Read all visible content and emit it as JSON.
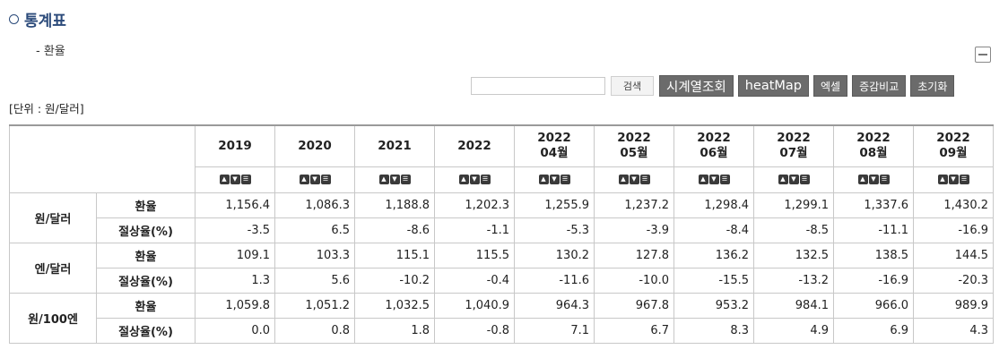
{
  "section": {
    "title": "통계표",
    "subtitle": "- 환율"
  },
  "toolbar": {
    "search_value": "",
    "search_button": "검색",
    "timeseries_button": "시계열조회",
    "heatmap_button": "heatMap",
    "excel_button": "엑셀",
    "compare_button": "증감비교",
    "reset_button": "초기화"
  },
  "unit_label": "[단위 : 원/달러]",
  "table": {
    "columns": [
      {
        "line1": "2019",
        "line2": ""
      },
      {
        "line1": "2020",
        "line2": ""
      },
      {
        "line1": "2021",
        "line2": ""
      },
      {
        "line1": "2022",
        "line2": ""
      },
      {
        "line1": "2022",
        "line2": "04월"
      },
      {
        "line1": "2022",
        "line2": "05월"
      },
      {
        "line1": "2022",
        "line2": "06월"
      },
      {
        "line1": "2022",
        "line2": "07월"
      },
      {
        "line1": "2022",
        "line2": "08월"
      },
      {
        "line1": "2022",
        "line2": "09월"
      }
    ],
    "groups": [
      {
        "name": "원/달러",
        "rows": [
          {
            "label": "환율",
            "values": [
              "1,156.4",
              "1,086.3",
              "1,188.8",
              "1,202.3",
              "1,255.9",
              "1,237.2",
              "1,298.4",
              "1,299.1",
              "1,337.6",
              "1,430.2"
            ]
          },
          {
            "label": "절상율(%)",
            "values": [
              "-3.5",
              "6.5",
              "-8.6",
              "-1.1",
              "-5.3",
              "-3.9",
              "-8.4",
              "-8.5",
              "-11.1",
              "-16.9"
            ]
          }
        ]
      },
      {
        "name": "엔/달러",
        "rows": [
          {
            "label": "환율",
            "values": [
              "109.1",
              "103.3",
              "115.1",
              "115.5",
              "130.2",
              "127.8",
              "136.2",
              "132.5",
              "138.5",
              "144.5"
            ]
          },
          {
            "label": "절상율(%)",
            "values": [
              "1.3",
              "5.6",
              "-10.2",
              "-0.4",
              "-11.6",
              "-10.0",
              "-15.5",
              "-13.2",
              "-16.9",
              "-20.3"
            ]
          }
        ]
      },
      {
        "name": "원/100엔",
        "rows": [
          {
            "label": "환율",
            "values": [
              "1,059.8",
              "1,051.2",
              "1,032.5",
              "1,040.9",
              "964.3",
              "967.8",
              "953.2",
              "984.1",
              "966.0",
              "989.9"
            ]
          },
          {
            "label": "절상율(%)",
            "values": [
              "0.0",
              "0.8",
              "1.8",
              "-0.8",
              "7.1",
              "6.7",
              "8.3",
              "4.9",
              "6.9",
              "4.3"
            ]
          }
        ]
      }
    ]
  }
}
